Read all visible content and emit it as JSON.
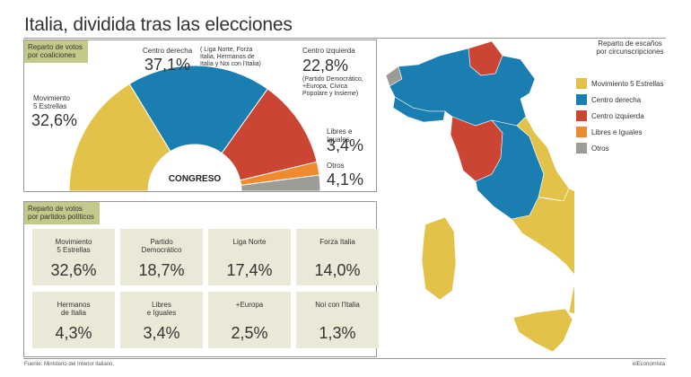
{
  "title": "Italia, dividida tras las elecciones",
  "coalitions": {
    "tag": "Reparto de votos\npor coaliciones",
    "center_label": "CONGRESO",
    "items": [
      {
        "name": "Movimiento\n5 Estrellas",
        "pct": "32,6%",
        "value": 32.6,
        "color": "#e3c24a"
      },
      {
        "name": "Centro derecha",
        "note": "( Liga Norte, Forza\nItalia, Hermanos de\nItalia y Noi con l'Italia)",
        "pct": "37,1%",
        "value": 37.1,
        "color": "#1a7fb0"
      },
      {
        "name": "Centro izquierda",
        "note": "(Partido Democrático,\n+Europa, Cívica\nPopolare y Insieme)",
        "pct": "22,8%",
        "value": 22.8,
        "color": "#cb4535"
      },
      {
        "name": "Libres e Iguales",
        "pct": "3,4%",
        "value": 3.4,
        "color": "#ef8a2e"
      },
      {
        "name": "Otros",
        "pct": "4,1%",
        "value": 4.1,
        "color": "#9c9c97"
      }
    ]
  },
  "parties": {
    "tag": "Reparto de votos\npor partidos políticos",
    "items": [
      {
        "name": "Movimiento\n5 Estrellas",
        "pct": "32,6%"
      },
      {
        "name": "Partido\nDemocrático",
        "pct": "18,7%"
      },
      {
        "name": "Liga Norte",
        "pct": "17,4%"
      },
      {
        "name": "Forza Italia",
        "pct": "14,0%"
      },
      {
        "name": "Hermanos\nde Italia",
        "pct": "4,3%"
      },
      {
        "name": "Libres\ne Iguales",
        "pct": "3,4%"
      },
      {
        "name": "+Europa",
        "pct": "2,5%"
      },
      {
        "name": "Noi con l'Italia",
        "pct": "1,3%"
      }
    ]
  },
  "map_legend": {
    "title": "Reparto de escaños\npor circunscripciones",
    "items": [
      {
        "label": "Movimiento 5 Estrellas",
        "color": "#e3c24a"
      },
      {
        "label": "Centro derecha",
        "color": "#1a7fb0"
      },
      {
        "label": "Centro izquierda",
        "color": "#cb4535"
      },
      {
        "label": "Libres e Iguales",
        "color": "#ef8a2e"
      },
      {
        "label": "Otros",
        "color": "#9c9c97"
      }
    ]
  },
  "source": "Fuente: Ministerio del Interior italiano.",
  "credit": "elEconomista",
  "chart_data": {
    "type": "pie",
    "title": "CONGRESO",
    "categories": [
      "Movimiento 5 Estrellas",
      "Centro derecha",
      "Centro izquierda",
      "Libres e Iguales",
      "Otros"
    ],
    "values": [
      32.6,
      37.1,
      22.8,
      3.4,
      4.1
    ]
  }
}
